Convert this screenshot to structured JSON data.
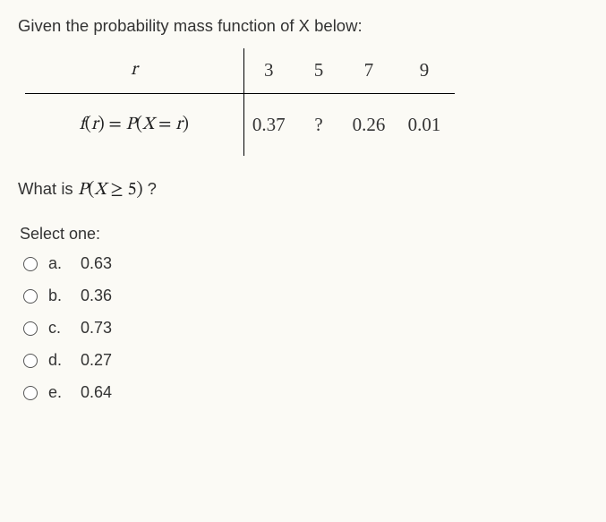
{
  "intro": "Given the probability mass function of X below:",
  "table": {
    "rowLabel1_html": "r",
    "rowLabel2_pre": "f",
    "rowLabel2_paren_open": "(",
    "rowLabel2_arg1": "r",
    "rowLabel2_paren_close": ")",
    "rowLabel2_eq": " = ",
    "rowLabel2_P": "P",
    "rowLabel2_paren2_open": "(",
    "rowLabel2_X": "X",
    "rowLabel2_eq2": " = ",
    "rowLabel2_arg2": "r",
    "rowLabel2_paren2_close": ")",
    "cols": [
      "3",
      "5",
      "7",
      "9"
    ],
    "vals": [
      "0.37",
      "?",
      "0.26",
      "0.01"
    ]
  },
  "question": {
    "pre": "What is ",
    "P": "P",
    "open": "(",
    "X": "X",
    "op": " ≥ ",
    "val": "5",
    "close": ")",
    "post": " ?"
  },
  "selectOne": "Select one:",
  "options": [
    {
      "letter": "a.",
      "text": "0.63"
    },
    {
      "letter": "b.",
      "text": "0.36"
    },
    {
      "letter": "c.",
      "text": "0.73"
    },
    {
      "letter": "d.",
      "text": "0.27"
    },
    {
      "letter": "e.",
      "text": "0.64"
    }
  ]
}
